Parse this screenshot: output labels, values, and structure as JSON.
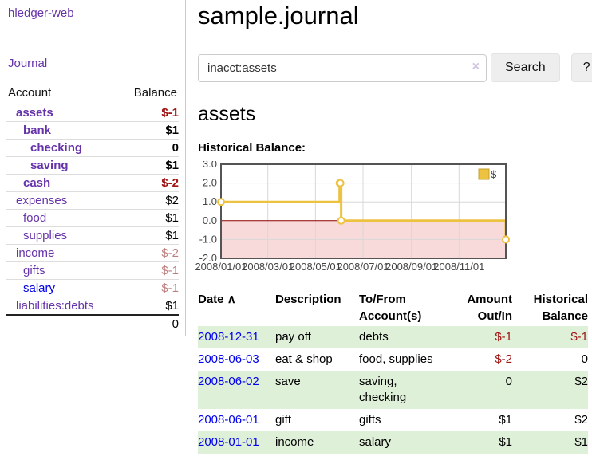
{
  "sidebar": {
    "brand": "hledger-web",
    "nav": {
      "journal": "Journal"
    },
    "accounts_table": {
      "headers": {
        "account": "Account",
        "balance": "Balance"
      },
      "rows": [
        {
          "name": "assets",
          "depth": 1,
          "bold": true,
          "blue": false,
          "balance": "$-1",
          "negative": true
        },
        {
          "name": "bank",
          "depth": 2,
          "bold": true,
          "blue": false,
          "balance": "$1",
          "negative": false
        },
        {
          "name": "checking",
          "depth": 3,
          "bold": true,
          "blue": false,
          "balance": "0",
          "negative": false
        },
        {
          "name": "saving",
          "depth": 3,
          "bold": true,
          "blue": false,
          "balance": "$1",
          "negative": false
        },
        {
          "name": "cash",
          "depth": 2,
          "bold": true,
          "blue": false,
          "balance": "$-2",
          "negative": true
        },
        {
          "name": "expenses",
          "depth": 1,
          "bold": false,
          "blue": false,
          "balance": "$2",
          "negative": false
        },
        {
          "name": "food",
          "depth": 2,
          "bold": false,
          "blue": false,
          "balance": "$1",
          "negative": false
        },
        {
          "name": "supplies",
          "depth": 2,
          "bold": false,
          "blue": false,
          "balance": "$1",
          "negative": false
        },
        {
          "name": "income",
          "depth": 1,
          "bold": false,
          "blue": false,
          "balance": "$-2",
          "negative": true
        },
        {
          "name": "gifts",
          "depth": 2,
          "bold": false,
          "blue": false,
          "balance": "$-1",
          "negative": true
        },
        {
          "name": "salary",
          "depth": 2,
          "bold": false,
          "blue": true,
          "balance": "$-1",
          "negative": true
        },
        {
          "name": "liabilities:debts",
          "depth": 1,
          "bold": false,
          "blue": false,
          "balance": "$1",
          "negative": false
        }
      ],
      "total": "0"
    }
  },
  "header": {
    "title": "sample.journal"
  },
  "search": {
    "value": "inacct:assets",
    "clear_icon": "×",
    "button": "Search",
    "help_button": "?"
  },
  "account_page": {
    "title": "assets",
    "chart_label": "Historical Balance:"
  },
  "chart_data": {
    "type": "line",
    "style": "step",
    "title": "Historical Balance",
    "series": [
      {
        "name": "$",
        "points": [
          [
            "2008-01-01",
            1
          ],
          [
            "2008-06-01",
            2
          ],
          [
            "2008-06-02",
            2
          ],
          [
            "2008-06-03",
            0
          ],
          [
            "2008-12-31",
            -1
          ]
        ]
      }
    ],
    "xlim": [
      "2008-01-01",
      "2008-12-31"
    ],
    "ylim": [
      -2,
      3
    ],
    "yticks": [
      3.0,
      2.0,
      1.0,
      0.0,
      -1.0,
      -2.0
    ],
    "xticks": [
      "2008/01/01",
      "2008/03/01",
      "2008/05/01",
      "2008/07/01",
      "2008/09/01",
      "2008/11/01"
    ],
    "legend": {
      "label": "$",
      "position": "top-right"
    },
    "grid": true,
    "line_color": "#edc240",
    "zero_line_color": "#8b0000",
    "negative_region_color": "#f9dada",
    "grid_color": "#d8d8d8",
    "border_color": "#545454"
  },
  "register": {
    "headers": {
      "date": "Date",
      "sort_icon": "∧",
      "description": "Description",
      "account": "To/From Account(s)",
      "amount": "Amount Out/In",
      "balance": "Historical Balance"
    },
    "rows": [
      {
        "date": "2008-12-31",
        "description": "pay off",
        "accounts": "debts",
        "amount": "$-1",
        "balance": "$-1"
      },
      {
        "date": "2008-06-03",
        "description": "eat & shop",
        "accounts": "food, supplies",
        "amount": "$-2",
        "balance": "0"
      },
      {
        "date": "2008-06-02",
        "description": "save",
        "accounts": "saving, checking",
        "amount": "0",
        "balance": "$2"
      },
      {
        "date": "2008-06-01",
        "description": "gift",
        "accounts": "gifts",
        "amount": "$1",
        "balance": "$2"
      },
      {
        "date": "2008-01-01",
        "description": "income",
        "accounts": "salary",
        "amount": "$1",
        "balance": "$1"
      }
    ]
  },
  "colors": {
    "link_purple": "#6633aa",
    "link_blue": "#0000ee",
    "negative_strong": "#a01414",
    "negative_muted": "#bd7f7f",
    "row_green": "#dff0d8"
  }
}
